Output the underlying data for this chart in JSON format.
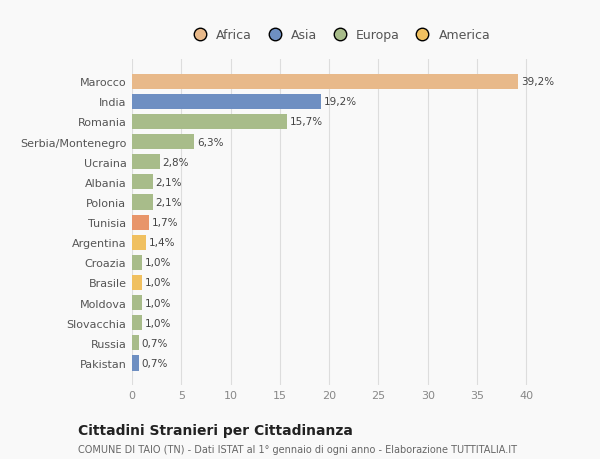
{
  "categories": [
    "Marocco",
    "India",
    "Romania",
    "Serbia/Montenegro",
    "Ucraina",
    "Albania",
    "Polonia",
    "Tunisia",
    "Argentina",
    "Croazia",
    "Brasile",
    "Moldova",
    "Slovacchia",
    "Russia",
    "Pakistan"
  ],
  "values": [
    39.2,
    19.2,
    15.7,
    6.3,
    2.8,
    2.1,
    2.1,
    1.7,
    1.4,
    1.0,
    1.0,
    1.0,
    1.0,
    0.7,
    0.7
  ],
  "labels": [
    "39,2%",
    "19,2%",
    "15,7%",
    "6,3%",
    "2,8%",
    "2,1%",
    "2,1%",
    "1,7%",
    "1,4%",
    "1,0%",
    "1,0%",
    "1,0%",
    "1,0%",
    "0,7%",
    "0,7%"
  ],
  "colors": [
    "#e8b98a",
    "#6e8fc2",
    "#a8bc8a",
    "#a8bc8a",
    "#a8bc8a",
    "#a8bc8a",
    "#a8bc8a",
    "#e8956a",
    "#f0c060",
    "#a8bc8a",
    "#f0c060",
    "#a8bc8a",
    "#a8bc8a",
    "#a8bc8a",
    "#6e8fc2"
  ],
  "legend_labels": [
    "Africa",
    "Asia",
    "Europa",
    "America"
  ],
  "legend_colors": [
    "#e8b98a",
    "#6e8fc2",
    "#a8bc8a",
    "#f0c060"
  ],
  "xlim": [
    0,
    42
  ],
  "xticks": [
    0,
    5,
    10,
    15,
    20,
    25,
    30,
    35,
    40
  ],
  "title": "Cittadini Stranieri per Cittadinanza",
  "subtitle": "COMUNE DI TAIO (TN) - Dati ISTAT al 1° gennaio di ogni anno - Elaborazione TUTTITALIA.IT",
  "background_color": "#f9f9f9",
  "grid_color": "#dddddd"
}
